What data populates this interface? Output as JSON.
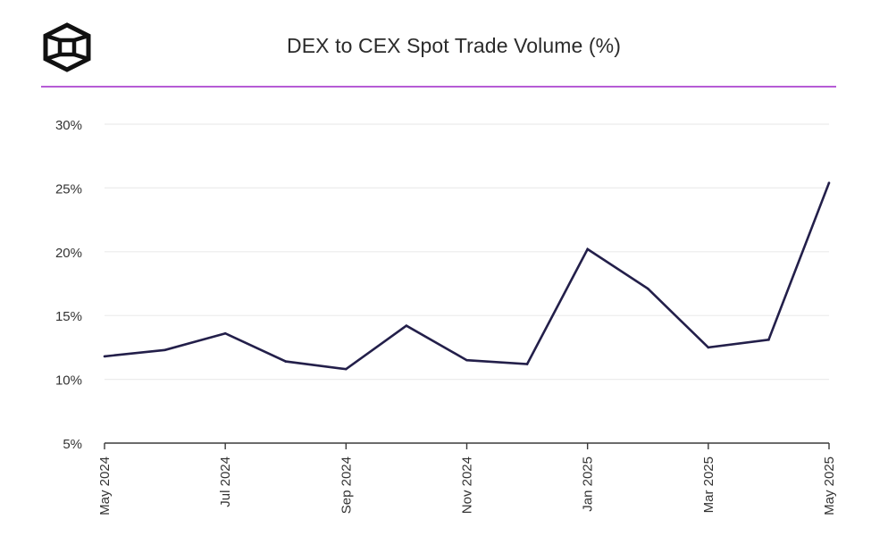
{
  "title": "DEX to CEX Spot Trade Volume (%)",
  "colors": {
    "line": "#231f4a",
    "accent": "#b65cd6",
    "grid": "#ececec",
    "axis": "#3a3a3a",
    "text": "#333333"
  },
  "icons": {
    "logo": "cube-logo-icon"
  },
  "chart_data": {
    "type": "line",
    "title": "DEX to CEX Spot Trade Volume (%)",
    "xlabel": "",
    "ylabel": "",
    "x": [
      "May 2024",
      "Jun 2024",
      "Jul 2024",
      "Aug 2024",
      "Sep 2024",
      "Oct 2024",
      "Nov 2024",
      "Dec 2024",
      "Jan 2025",
      "Feb 2025",
      "Mar 2025",
      "Apr 2025",
      "May 2025"
    ],
    "x_tick_labels": [
      "May 2024",
      "",
      "Jul 2024",
      "",
      "Sep 2024",
      "",
      "Nov 2024",
      "",
      "Jan 2025",
      "",
      "Mar 2025",
      "",
      "May 2025"
    ],
    "series": [
      {
        "values": [
          11.8,
          12.3,
          13.6,
          11.4,
          10.8,
          14.2,
          11.5,
          11.2,
          20.2,
          17.1,
          12.5,
          13.1,
          25.4
        ]
      }
    ],
    "y_ticks": [
      5,
      10,
      15,
      20,
      25,
      30
    ],
    "y_tick_labels": [
      "5%",
      "10%",
      "15%",
      "20%",
      "25%",
      "30%"
    ],
    "ylim": [
      5,
      30
    ],
    "grid": true,
    "legend": "none"
  }
}
